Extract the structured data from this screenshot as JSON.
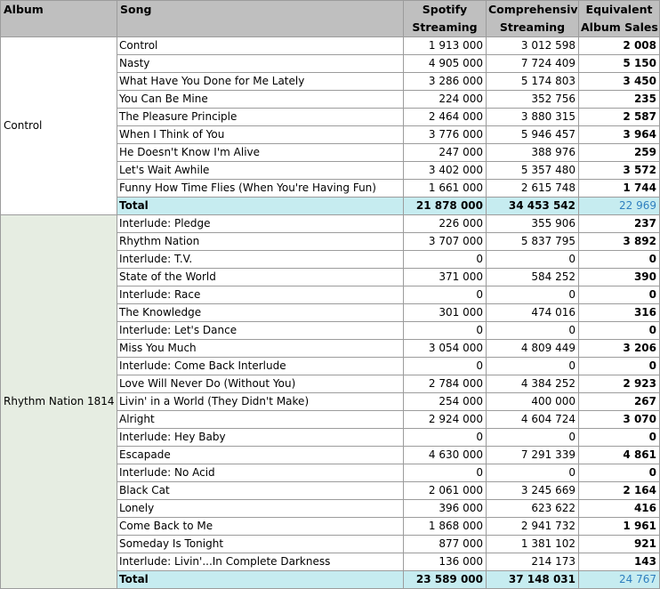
{
  "header": {
    "album": "Album",
    "song": "Song",
    "spotify": [
      "Spotify",
      "Streaming"
    ],
    "comprehensive": [
      "Comprehensive",
      "Streaming"
    ],
    "sales": [
      "Equivalent",
      "Album Sales"
    ]
  },
  "groups": [
    {
      "album": "Control",
      "rows": [
        {
          "song": "Control",
          "spotify": "1 913 000",
          "comprehensive": "3 012 598",
          "sales": "2 008"
        },
        {
          "song": "Nasty",
          "spotify": "4 905 000",
          "comprehensive": "7 724 409",
          "sales": "5 150"
        },
        {
          "song": "What Have You Done for Me Lately",
          "spotify": "3 286 000",
          "comprehensive": "5 174 803",
          "sales": "3 450"
        },
        {
          "song": "You Can Be Mine",
          "spotify": "224 000",
          "comprehensive": "352 756",
          "sales": "235"
        },
        {
          "song": "The Pleasure Principle",
          "spotify": "2 464 000",
          "comprehensive": "3 880 315",
          "sales": "2 587"
        },
        {
          "song": "When I Think of You",
          "spotify": "3 776 000",
          "comprehensive": "5 946 457",
          "sales": "3 964"
        },
        {
          "song": "He Doesn't Know I'm Alive",
          "spotify": "247 000",
          "comprehensive": "388 976",
          "sales": "259"
        },
        {
          "song": "Let's Wait Awhile",
          "spotify": "3 402 000",
          "comprehensive": "5 357 480",
          "sales": "3 572"
        },
        {
          "song": "Funny How Time Flies (When You're Having Fun)",
          "spotify": "1 661 000",
          "comprehensive": "2 615 748",
          "sales": "1 744"
        }
      ],
      "total": {
        "label": "Total",
        "spotify": "21 878 000",
        "comprehensive": "34 453 542",
        "sales": "22 969"
      }
    },
    {
      "album": "Rhythm Nation 1814",
      "rows": [
        {
          "song": "Interlude: Pledge",
          "spotify": "226 000",
          "comprehensive": "355 906",
          "sales": "237"
        },
        {
          "song": "Rhythm Nation",
          "spotify": "3 707 000",
          "comprehensive": "5 837 795",
          "sales": "3 892"
        },
        {
          "song": "Interlude: T.V.",
          "spotify": "0",
          "comprehensive": "0",
          "sales": "0"
        },
        {
          "song": "State of the World",
          "spotify": "371 000",
          "comprehensive": "584 252",
          "sales": "390"
        },
        {
          "song": "Interlude: Race",
          "spotify": "0",
          "comprehensive": "0",
          "sales": "0"
        },
        {
          "song": "The Knowledge",
          "spotify": "301 000",
          "comprehensive": "474 016",
          "sales": "316"
        },
        {
          "song": "Interlude: Let's Dance",
          "spotify": "0",
          "comprehensive": "0",
          "sales": "0"
        },
        {
          "song": "Miss You Much",
          "spotify": "3 054 000",
          "comprehensive": "4 809 449",
          "sales": "3 206"
        },
        {
          "song": "Interlude: Come Back Interlude",
          "spotify": "0",
          "comprehensive": "0",
          "sales": "0"
        },
        {
          "song": "Love Will Never Do (Without You)",
          "spotify": "2 784 000",
          "comprehensive": "4 384 252",
          "sales": "2 923"
        },
        {
          "song": "Livin' in a World (They Didn't Make)",
          "spotify": "254 000",
          "comprehensive": "400 000",
          "sales": "267"
        },
        {
          "song": "Alright",
          "spotify": "2 924 000",
          "comprehensive": "4 604 724",
          "sales": "3 070"
        },
        {
          "song": "Interlude: Hey Baby",
          "spotify": "0",
          "comprehensive": "0",
          "sales": "0"
        },
        {
          "song": "Escapade",
          "spotify": "4 630 000",
          "comprehensive": "7 291 339",
          "sales": "4 861"
        },
        {
          "song": "Interlude: No Acid",
          "spotify": "0",
          "comprehensive": "0",
          "sales": "0"
        },
        {
          "song": "Black Cat",
          "spotify": "2 061 000",
          "comprehensive": "3 245 669",
          "sales": "2 164"
        },
        {
          "song": "Lonely",
          "spotify": "396 000",
          "comprehensive": "623 622",
          "sales": "416"
        },
        {
          "song": "Come Back to Me",
          "spotify": "1 868 000",
          "comprehensive": "2 941 732",
          "sales": "1 961"
        },
        {
          "song": "Someday Is Tonight",
          "spotify": "877 000",
          "comprehensive": "1 381 102",
          "sales": "921"
        },
        {
          "song": "Interlude: Livin'...In Complete Darkness",
          "spotify": "136 000",
          "comprehensive": "214 173",
          "sales": "143"
        }
      ],
      "total": {
        "label": "Total",
        "spotify": "23 589 000",
        "comprehensive": "37 148 031",
        "sales": "24 767"
      }
    }
  ],
  "colors": {
    "header_bg": "#bfbfbf",
    "total_bg": "#c6ecf0",
    "group2_album_bg": "#e6ede2",
    "total_sales_text": "#2f7fbf",
    "grid": "#9c9c9c"
  }
}
